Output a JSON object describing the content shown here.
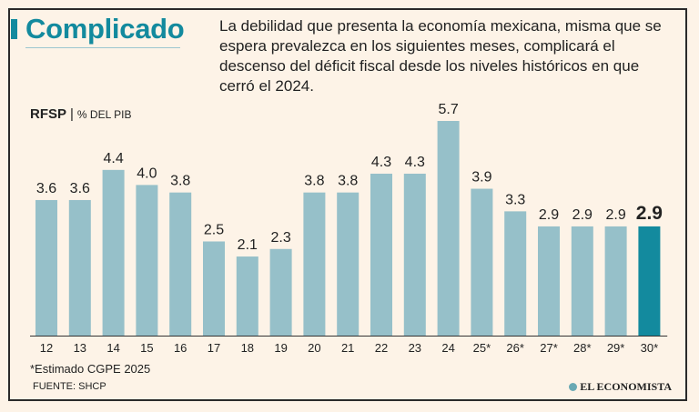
{
  "header": {
    "title": "Complicado",
    "subtitle": "La debilidad que presenta la economía mexicana, misma que se espera prevalezca en los siguientes meses, complicará el descenso del déficit fiscal desde los niveles históricos en que cerró el 2024."
  },
  "chart_label": {
    "name": "RFSP",
    "separator": "|",
    "unit": "% DEL PIB"
  },
  "colors": {
    "bar": "#96c0c9",
    "highlight": "#138a9e",
    "title": "#138a9e"
  },
  "chart_data": {
    "type": "bar",
    "title": "RFSP",
    "ylabel": "% DEL PIB",
    "xlabel": "",
    "categories": [
      "12",
      "13",
      "14",
      "15",
      "16",
      "17",
      "18",
      "19",
      "20",
      "21",
      "22",
      "23",
      "24",
      "25*",
      "26*",
      "27*",
      "28*",
      "29*",
      "30*"
    ],
    "values": [
      3.6,
      3.6,
      4.4,
      4.0,
      3.8,
      2.5,
      2.1,
      2.3,
      3.8,
      3.8,
      4.3,
      4.3,
      5.7,
      3.9,
      3.3,
      2.9,
      2.9,
      2.9,
      2.9
    ],
    "value_labels": [
      "3.6",
      "3.6",
      "4.4",
      "4.0",
      "3.8",
      "2.5",
      "2.1",
      "2.3",
      "3.8",
      "3.8",
      "4.3",
      "4.3",
      "5.7",
      "3.9",
      "3.3",
      "2.9",
      "2.9",
      "2.9",
      "2.9"
    ],
    "highlight_index": 18,
    "ylim": [
      0,
      5.7
    ],
    "grid": false
  },
  "footer": {
    "note": "*Estimado CGPE 2025",
    "source": "FUENTE: SHCP",
    "brand": "EL ECONOMISTA"
  }
}
